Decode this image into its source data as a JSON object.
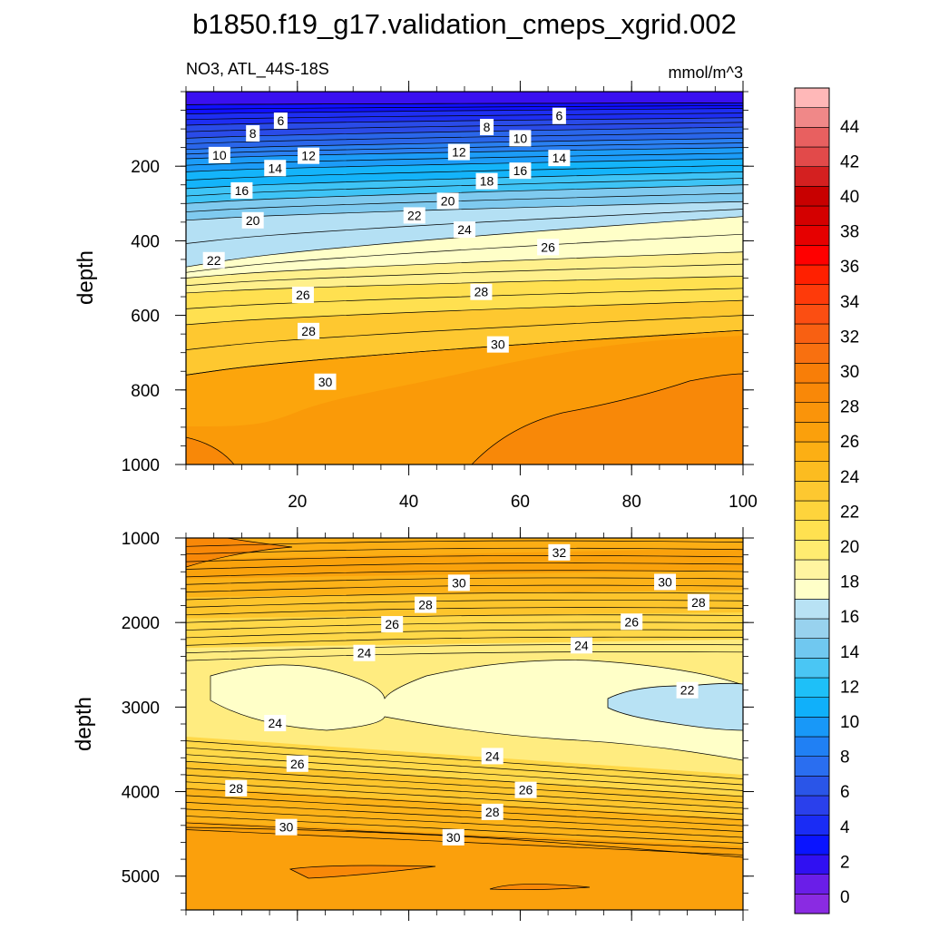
{
  "title": "b1850.f19_g17.validation_cmeps_xgrid.002",
  "subtitle_left": "NO3, ATL_44S-18S",
  "subtitle_right": "mmol/m^3",
  "colors": {
    "levels": [
      0,
      2,
      4,
      6,
      8,
      10,
      12,
      14,
      16,
      18,
      20,
      22,
      24,
      26,
      28,
      30,
      32,
      34,
      36,
      38,
      40,
      42,
      44
    ],
    "fills": [
      "#8a2be2",
      "#6a1ee8",
      "#2f10f5",
      "#0a14ff",
      "#1e3cf0",
      "#2a55e8",
      "#2a6ef0",
      "#1f88f8",
      "#16a4fa",
      "#10bcfa",
      "#40c8f5",
      "#6dcaf2",
      "#9dd4f0",
      "#c0e4f4",
      "#ffffc8",
      "#fff59a",
      "#ffeb60",
      "#fed53c",
      "#fdc428",
      "#fcb014",
      "#fba008",
      "#f99004",
      "#f78408",
      "#f57708",
      "#f86a10",
      "#f85714",
      "#fb4410",
      "#fe2a08",
      "#ff0000",
      "#e80000",
      "#d80000",
      "#c80000",
      "#e24040",
      "#e85858",
      "#f08080",
      "#ffb4b4"
    ]
  },
  "chart_data": [
    {
      "type": "heatmap",
      "subtype": "filled-contour",
      "panel": "upper",
      "xlabel": "",
      "ylabel": "depth",
      "xlim": [
        0,
        100
      ],
      "ylim": [
        1000,
        0
      ],
      "xticks": [
        20,
        40,
        60,
        80,
        100
      ],
      "yticks": [
        200,
        400,
        600,
        800,
        1000
      ],
      "contour_labels": [
        {
          "value": "6",
          "x": 17,
          "y": 78
        },
        {
          "value": "8",
          "x": 12,
          "y": 112
        },
        {
          "value": "10",
          "x": 6,
          "y": 170
        },
        {
          "value": "12",
          "x": 22,
          "y": 172
        },
        {
          "value": "14",
          "x": 16,
          "y": 205
        },
        {
          "value": "16",
          "x": 10,
          "y": 265
        },
        {
          "value": "20",
          "x": 12,
          "y": 345
        },
        {
          "value": "22",
          "x": 5,
          "y": 452
        },
        {
          "value": "26",
          "x": 21,
          "y": 545
        },
        {
          "value": "28",
          "x": 22,
          "y": 642
        },
        {
          "value": "30",
          "x": 25,
          "y": 778
        },
        {
          "value": "22",
          "x": 41,
          "y": 332
        },
        {
          "value": "20",
          "x": 47,
          "y": 293
        },
        {
          "value": "12",
          "x": 49,
          "y": 162
        },
        {
          "value": "8",
          "x": 54,
          "y": 95
        },
        {
          "value": "18",
          "x": 54,
          "y": 240
        },
        {
          "value": "24",
          "x": 50,
          "y": 370
        },
        {
          "value": "28",
          "x": 53,
          "y": 537
        },
        {
          "value": "30",
          "x": 56,
          "y": 678
        },
        {
          "value": "10",
          "x": 60,
          "y": 125
        },
        {
          "value": "16",
          "x": 60,
          "y": 212
        },
        {
          "value": "6",
          "x": 67,
          "y": 65
        },
        {
          "value": "14",
          "x": 67,
          "y": 178
        },
        {
          "value": "26",
          "x": 65,
          "y": 417
        }
      ]
    },
    {
      "type": "heatmap",
      "subtype": "filled-contour",
      "panel": "lower",
      "xlabel": "",
      "ylabel": "depth",
      "xlim": [
        0,
        100
      ],
      "ylim": [
        5400,
        1000
      ],
      "yticks": [
        1000,
        2000,
        3000,
        4000,
        5000
      ],
      "contour_labels": [
        {
          "value": "32",
          "x": 67,
          "y": 1170
        },
        {
          "value": "30",
          "x": 49,
          "y": 1530
        },
        {
          "value": "30",
          "x": 86,
          "y": 1520
        },
        {
          "value": "28",
          "x": 43,
          "y": 1790
        },
        {
          "value": "28",
          "x": 92,
          "y": 1760
        },
        {
          "value": "26",
          "x": 37,
          "y": 2020
        },
        {
          "value": "26",
          "x": 80,
          "y": 1990
        },
        {
          "value": "24",
          "x": 32,
          "y": 2360
        },
        {
          "value": "24",
          "x": 71,
          "y": 2270
        },
        {
          "value": "22",
          "x": 90,
          "y": 2800
        },
        {
          "value": "24",
          "x": 16,
          "y": 3190
        },
        {
          "value": "24",
          "x": 55,
          "y": 3580
        },
        {
          "value": "26",
          "x": 20,
          "y": 3670
        },
        {
          "value": "26",
          "x": 61,
          "y": 3980
        },
        {
          "value": "28",
          "x": 9,
          "y": 3960
        },
        {
          "value": "28",
          "x": 55,
          "y": 4240
        },
        {
          "value": "30",
          "x": 18,
          "y": 4420
        },
        {
          "value": "30",
          "x": 48,
          "y": 4540
        }
      ]
    }
  ],
  "colorbar": {
    "labels": [
      "0",
      "2",
      "4",
      "6",
      "8",
      "10",
      "12",
      "14",
      "16",
      "18",
      "20",
      "22",
      "24",
      "26",
      "28",
      "30",
      "32",
      "34",
      "36",
      "38",
      "40",
      "42",
      "44"
    ]
  }
}
